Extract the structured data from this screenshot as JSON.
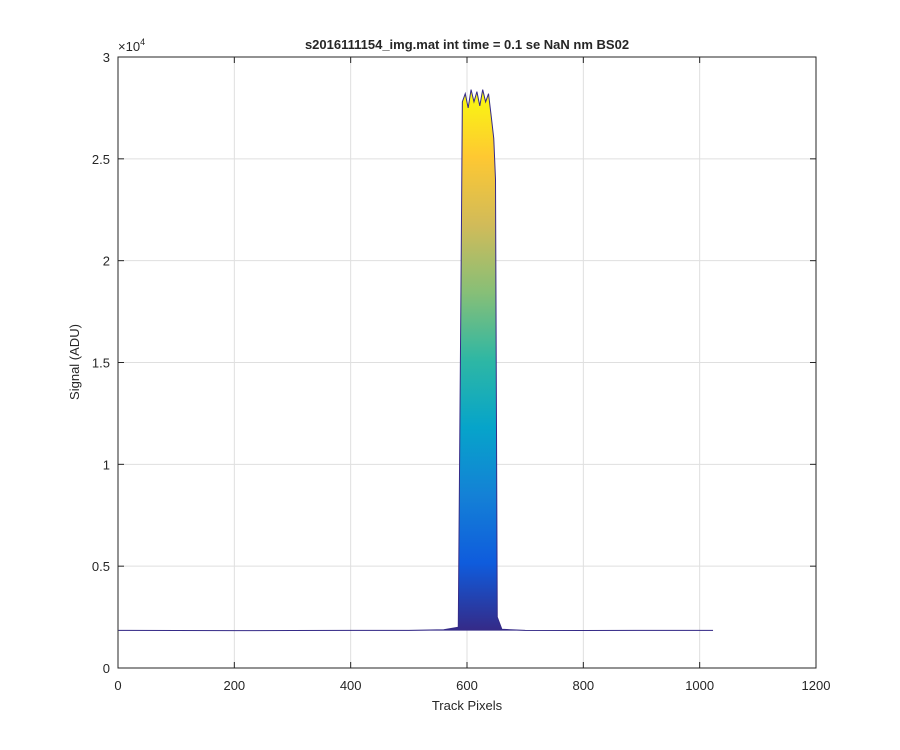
{
  "chart_data": {
    "type": "line",
    "title": "s2016111154_img.mat int time = 0.1 se  NaN nm BS02",
    "x_label": "Track Pixels",
    "y_label": "Signal (ADU)",
    "y_multiplier": {
      "base": "×10",
      "exponent": "4"
    },
    "x": [
      1,
      100,
      200,
      300,
      400,
      500,
      560,
      585,
      590,
      592,
      597,
      602,
      607,
      612,
      617,
      622,
      627,
      632,
      637,
      642,
      646,
      649,
      652,
      660,
      700,
      800,
      900,
      1023
    ],
    "values": [
      1850,
      1840,
      1835,
      1840,
      1845,
      1850,
      1880,
      2000,
      20000,
      27800,
      28200,
      27500,
      28400,
      27800,
      28300,
      27600,
      28400,
      27800,
      28200,
      27000,
      26000,
      24000,
      2500,
      1900,
      1850,
      1840,
      1845,
      1850
    ],
    "color": "#352a87",
    "colormap": [
      "#352a87",
      "#0f5cdd",
      "#1481d6",
      "#06a4ca",
      "#2eb7a4",
      "#87bf77",
      "#d1bb59",
      "#fec832",
      "#f9fb0e"
    ],
    "xlim": [
      0,
      1200
    ],
    "xticks": [
      0,
      200,
      400,
      600,
      800,
      1000,
      1200
    ],
    "ylim": [
      0,
      30000
    ],
    "yticks": [
      0,
      {
        "value": 5000,
        "label": "0.5"
      },
      {
        "value": 10000,
        "label": "1"
      },
      {
        "value": 15000,
        "label": "1.5"
      },
      {
        "value": 20000,
        "label": "2"
      },
      {
        "value": 25000,
        "label": "2.5"
      },
      {
        "value": 30000,
        "label": "3"
      }
    ],
    "grid": true
  }
}
